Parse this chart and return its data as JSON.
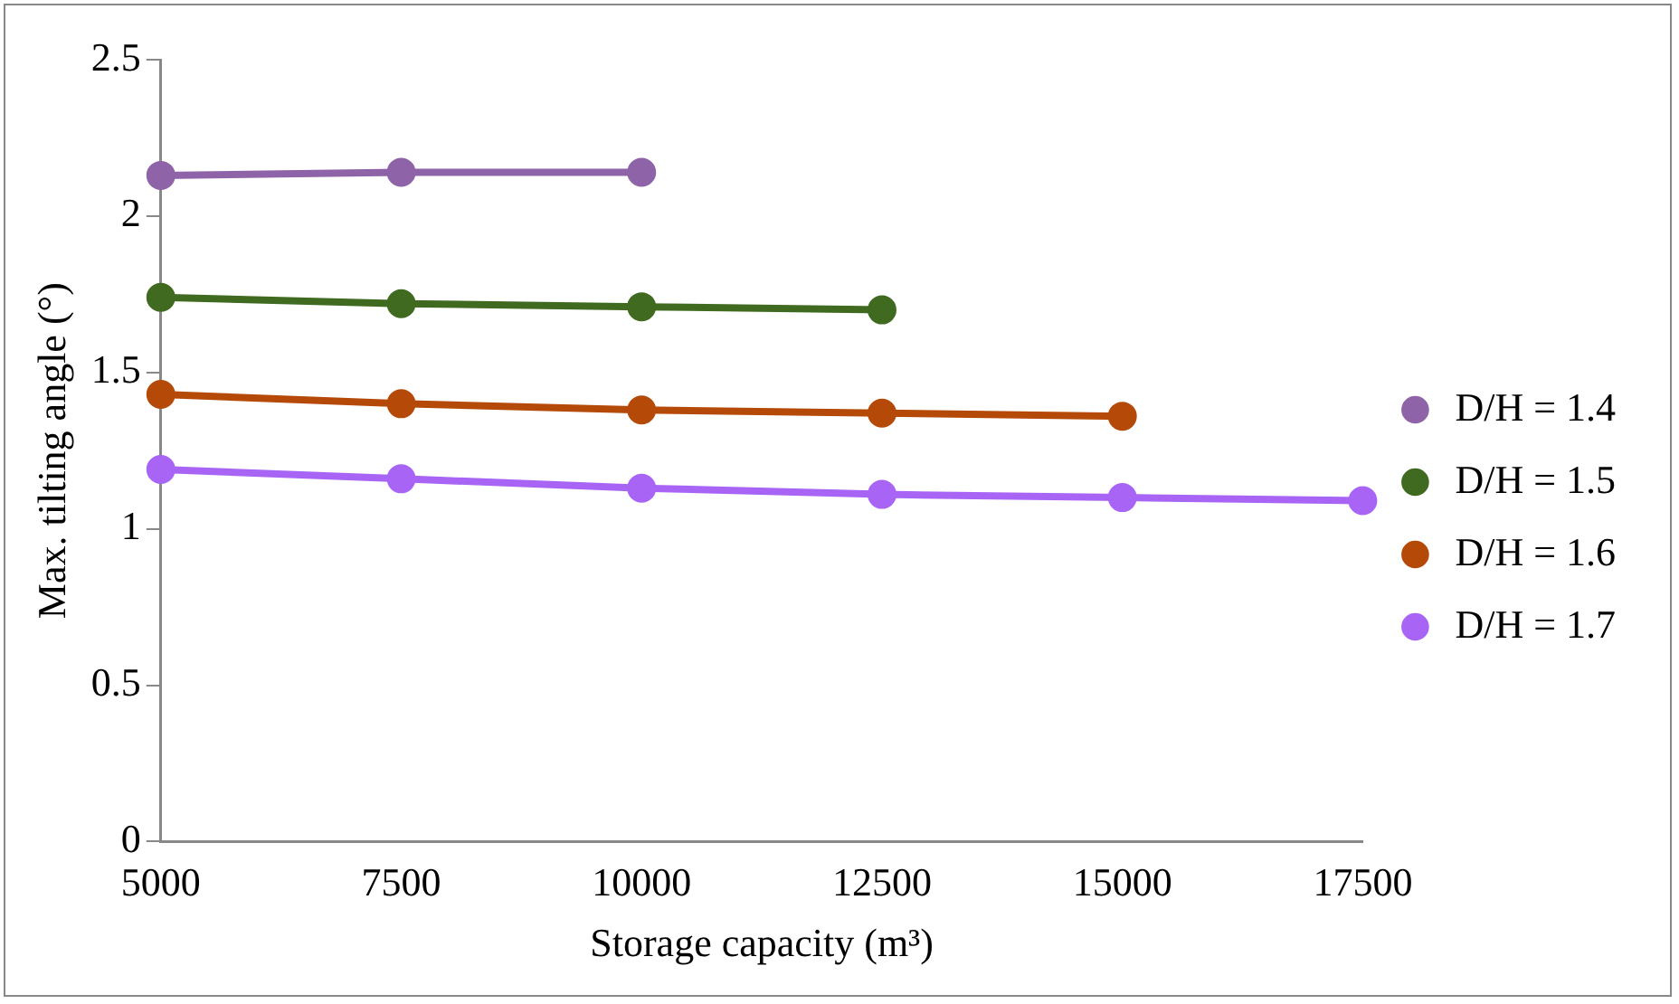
{
  "chart_data": {
    "type": "line",
    "xlabel": "Storage capacity (m³)",
    "ylabel": "Max. tilting angle (°)",
    "xlim": [
      5000,
      17500
    ],
    "xticks": [
      5000,
      7500,
      10000,
      12500,
      15000,
      17500
    ],
    "ylim": [
      0,
      2.5
    ],
    "yticks": [
      0,
      0.5,
      1,
      1.5,
      2,
      2.5
    ],
    "grid": false,
    "legend": "right",
    "marker": "circle",
    "x": [
      5000,
      7500,
      10000,
      12500,
      15000,
      17500
    ],
    "series": [
      {
        "name": "D/H = 1.4",
        "color": "#8e63a8",
        "values": [
          2.13,
          2.14,
          2.14,
          null,
          null,
          null
        ]
      },
      {
        "name": "D/H = 1.5",
        "color": "#3f6a1f",
        "values": [
          1.74,
          1.72,
          1.71,
          1.7,
          null,
          null
        ]
      },
      {
        "name": "D/H = 1.6",
        "color": "#b54a08",
        "values": [
          1.43,
          1.4,
          1.38,
          1.37,
          1.36,
          null
        ]
      },
      {
        "name": "D/H = 1.7",
        "color": "#a865f5",
        "values": [
          1.19,
          1.16,
          1.13,
          1.11,
          1.1,
          1.09
        ]
      }
    ]
  }
}
